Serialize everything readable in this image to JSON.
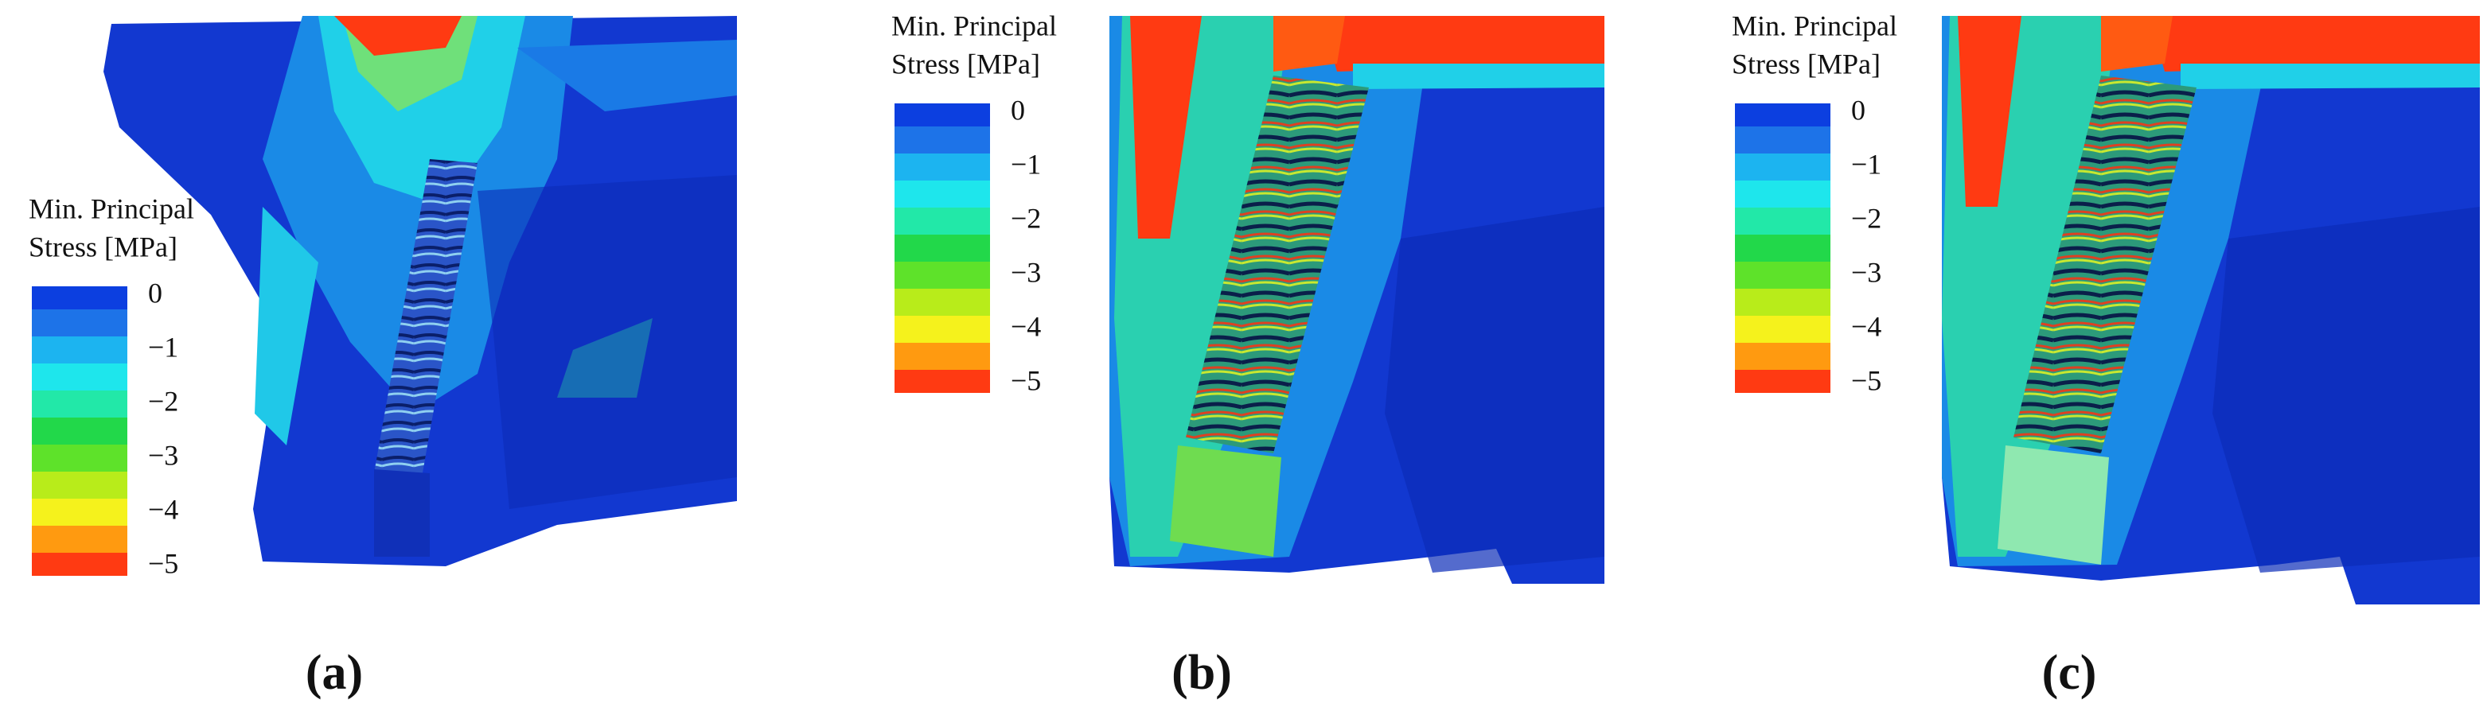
{
  "panels": [
    {
      "caption": "(a)",
      "legend": {
        "title": [
          "Min. Principal",
          "Stress [MPa]"
        ],
        "lim": [
          0,
          -5
        ],
        "ticks": [
          0,
          {
            "value": -1,
            "label": "−1"
          },
          {
            "value": -2,
            "label": "−2"
          },
          {
            "value": -3,
            "label": "−3"
          },
          {
            "value": -4,
            "label": "−4"
          },
          {
            "value": -5,
            "label": "−5"
          }
        ],
        "colors": [
          "#0c3fe0",
          "#1d73e8",
          "#1cb4f0",
          "#1ee6ec",
          "#22e8a8",
          "#22d84a",
          "#5ee22a",
          "#b8ec1a",
          "#f5f21c",
          "#ff9a10",
          "#ff3a12"
        ]
      }
    },
    {
      "caption": "(b)",
      "legend": {
        "title": [
          "Min. Principal",
          "Stress [MPa]"
        ],
        "lim": [
          0,
          -5
        ],
        "ticks": [
          0,
          {
            "value": -1,
            "label": "−1"
          },
          {
            "value": -2,
            "label": "−2"
          },
          {
            "value": -3,
            "label": "−3"
          },
          {
            "value": -4,
            "label": "−4"
          },
          {
            "value": -5,
            "label": "−5"
          }
        ],
        "colors": [
          "#0c3fe0",
          "#1d73e8",
          "#1cb4f0",
          "#1ee6ec",
          "#22e8a8",
          "#22d84a",
          "#5ee22a",
          "#b8ec1a",
          "#f5f21c",
          "#ff9a10",
          "#ff3a12"
        ]
      }
    },
    {
      "caption": "(c)",
      "legend": {
        "title": [
          "Min. Principal",
          "Stress [MPa]"
        ],
        "lim": [
          0,
          -5
        ],
        "ticks": [
          0,
          {
            "value": -1,
            "label": "−1"
          },
          {
            "value": -2,
            "label": "−2"
          },
          {
            "value": -3,
            "label": "−3"
          },
          {
            "value": -4,
            "label": "−4"
          },
          {
            "value": -5,
            "label": "−5"
          }
        ],
        "colors": [
          "#0c3fe0",
          "#1d73e8",
          "#1cb4f0",
          "#1ee6ec",
          "#22e8a8",
          "#22d84a",
          "#5ee22a",
          "#b8ec1a",
          "#f5f21c",
          "#ff9a10",
          "#ff3a12"
        ]
      }
    }
  ]
}
